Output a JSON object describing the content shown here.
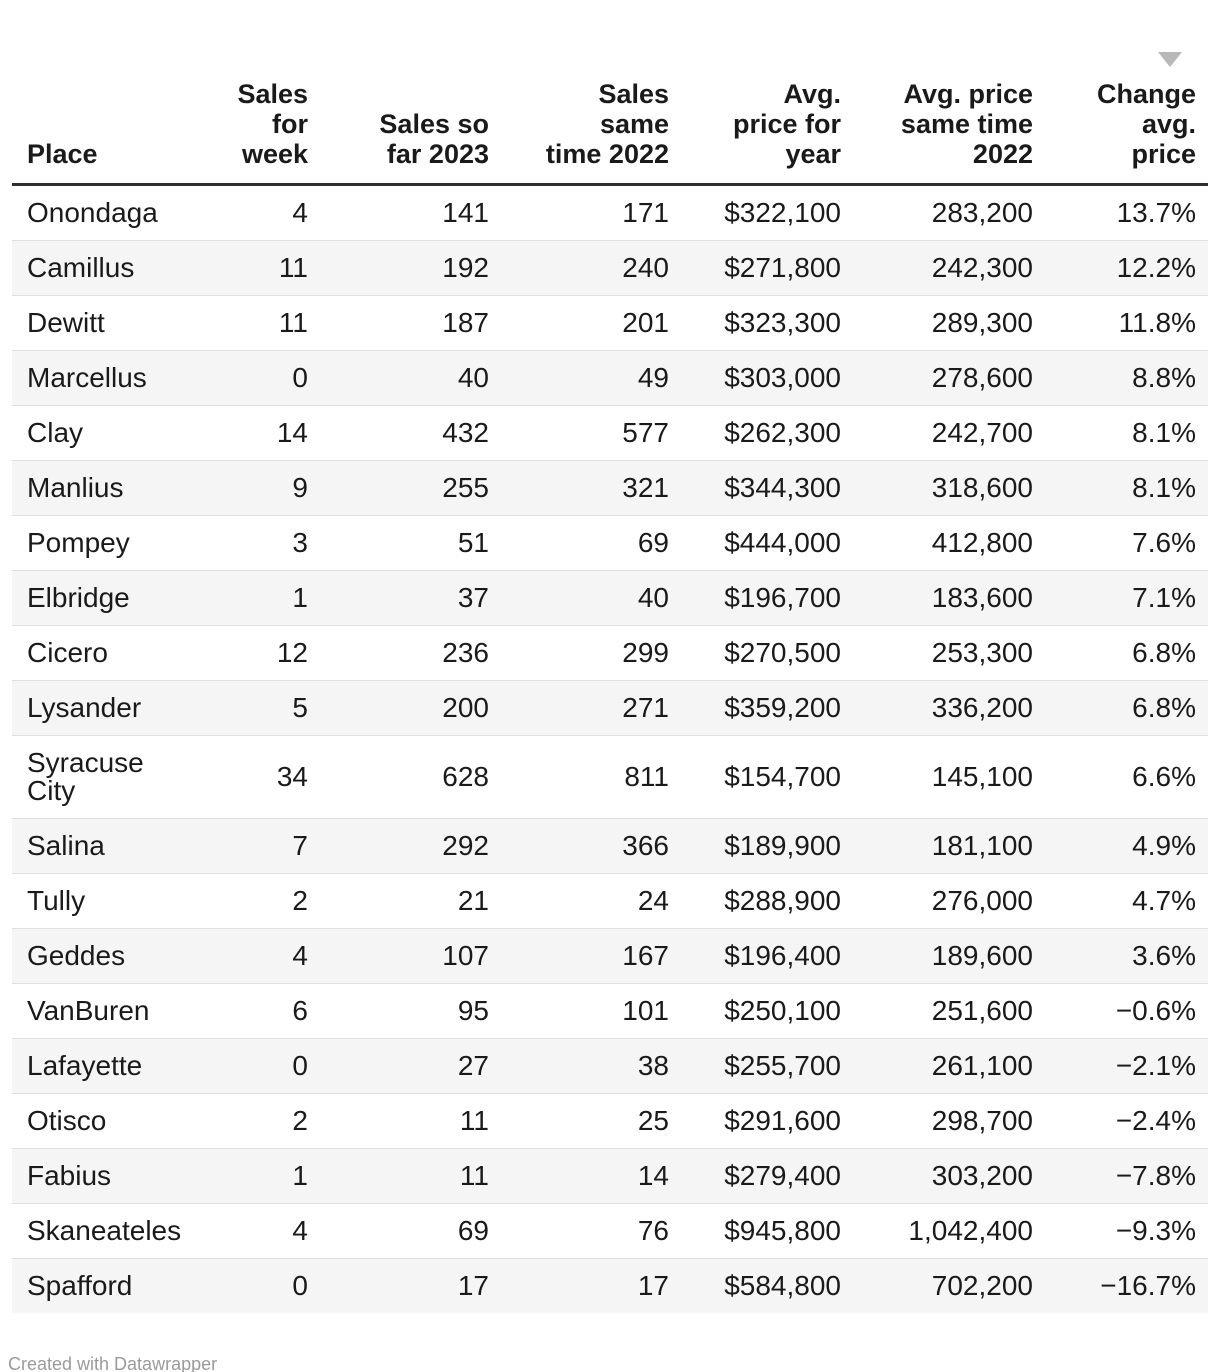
{
  "chart_data": {
    "type": "table",
    "title": "",
    "sort": {
      "column": "change_avg_price",
      "direction": "desc"
    },
    "columns": [
      {
        "id": "place",
        "label": "Place",
        "align": "left",
        "sorted": false
      },
      {
        "id": "sales_for_week",
        "label": "Sales\nfor\nweek",
        "align": "right",
        "sorted": false
      },
      {
        "id": "sales_so_far_2023",
        "label": "Sales so\nfar 2023",
        "align": "right",
        "sorted": false
      },
      {
        "id": "sales_same_2022",
        "label": "Sales\nsame\ntime 2022",
        "align": "right",
        "sorted": false
      },
      {
        "id": "avg_price_year",
        "label": "Avg.\nprice for\nyear",
        "align": "right",
        "sorted": false
      },
      {
        "id": "avg_price_2022",
        "label": "Avg. price\nsame time\n2022",
        "align": "right",
        "sorted": false
      },
      {
        "id": "change_avg_price",
        "label": "Change\navg.\nprice",
        "align": "right",
        "sorted": true
      }
    ],
    "rows": [
      [
        "Onondaga",
        "4",
        "141",
        "171",
        "$322,100",
        "283,200",
        "13.7%"
      ],
      [
        "Camillus",
        "11",
        "192",
        "240",
        "$271,800",
        "242,300",
        "12.2%"
      ],
      [
        "Dewitt",
        "11",
        "187",
        "201",
        "$323,300",
        "289,300",
        "11.8%"
      ],
      [
        "Marcellus",
        "0",
        "40",
        "49",
        "$303,000",
        "278,600",
        "8.8%"
      ],
      [
        "Clay",
        "14",
        "432",
        "577",
        "$262,300",
        "242,700",
        "8.1%"
      ],
      [
        "Manlius",
        "9",
        "255",
        "321",
        "$344,300",
        "318,600",
        "8.1%"
      ],
      [
        "Pompey",
        "3",
        "51",
        "69",
        "$444,000",
        "412,800",
        "7.6%"
      ],
      [
        "Elbridge",
        "1",
        "37",
        "40",
        "$196,700",
        "183,600",
        "7.1%"
      ],
      [
        "Cicero",
        "12",
        "236",
        "299",
        "$270,500",
        "253,300",
        "6.8%"
      ],
      [
        "Lysander",
        "5",
        "200",
        "271",
        "$359,200",
        "336,200",
        "6.8%"
      ],
      [
        "Syracuse\nCity",
        "34",
        "628",
        "811",
        "$154,700",
        "145,100",
        "6.6%"
      ],
      [
        "Salina",
        "7",
        "292",
        "366",
        "$189,900",
        "181,100",
        "4.9%"
      ],
      [
        "Tully",
        "2",
        "21",
        "24",
        "$288,900",
        "276,000",
        "4.7%"
      ],
      [
        "Geddes",
        "4",
        "107",
        "167",
        "$196,400",
        "189,600",
        "3.6%"
      ],
      [
        "VanBuren",
        "6",
        "95",
        "101",
        "$250,100",
        "251,600",
        "−0.6%"
      ],
      [
        "Lafayette",
        "0",
        "27",
        "38",
        "$255,700",
        "261,100",
        "−2.1%"
      ],
      [
        "Otisco",
        "2",
        "11",
        "25",
        "$291,600",
        "298,700",
        "−2.4%"
      ],
      [
        "Fabius",
        "1",
        "11",
        "14",
        "$279,400",
        "303,200",
        "−7.8%"
      ],
      [
        "Skaneateles",
        "4",
        "69",
        "76",
        "$945,800",
        "1,042,400",
        "−9.3%"
      ],
      [
        "Spafford",
        "0",
        "17",
        "17",
        "$584,800",
        "702,200",
        "−16.7%"
      ]
    ]
  },
  "icons": {
    "sort_desc": "down-triangle"
  },
  "colors": {
    "text": "#1a1a1a",
    "header_border": "#2e2e2e",
    "row_divider": "#e0e0e0",
    "zebra_row": "#f5f5f5",
    "sort_icon": "#b8b8b8",
    "footer_text": "#9a9a9a",
    "background": "#ffffff"
  },
  "footer": {
    "credit": "Created with Datawrapper"
  }
}
